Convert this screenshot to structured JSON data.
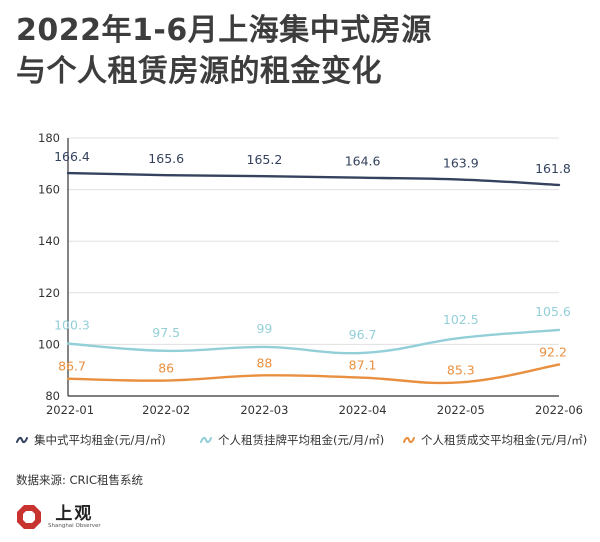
{
  "title": {
    "line1": "2022年1-6月上海集中式房源",
    "line2": "与个人租赁房源的租金变化"
  },
  "chart_data": {
    "type": "line",
    "title": "2022年1-6月上海集中式房源与个人租赁房源的租金变化",
    "categories": [
      "2022-01",
      "2022-02",
      "2022-03",
      "2022-04",
      "2022-05",
      "2022-06"
    ],
    "ylim": [
      80,
      180
    ],
    "yticks": [
      80,
      100,
      120,
      140,
      160,
      180
    ],
    "grid": "horizontal",
    "legend_position": "bottom",
    "series": [
      {
        "name": "集中式平均租金(元/月/㎡)",
        "color": "#34425e",
        "values": [
          166.4,
          165.6,
          165.2,
          164.6,
          163.9,
          161.8
        ],
        "labels": [
          "166.4",
          "165.6",
          "165.2",
          "164.6",
          "163.9",
          "161.8"
        ]
      },
      {
        "name": "个人租赁挂牌平均租金(元/月/㎡)",
        "color": "#93cfd8",
        "values": [
          100.3,
          97.5,
          99,
          96.7,
          102.5,
          105.6
        ],
        "labels": [
          "100.3",
          "97.5",
          "99",
          "96.7",
          "102.5",
          "105.6"
        ]
      },
      {
        "name": "个人租赁成交平均租金(元/月/㎡)",
        "color": "#e99040",
        "values": [
          86.7,
          86,
          88,
          87.1,
          85.3,
          92.2
        ],
        "labels": [
          "86.7",
          "86",
          "88",
          "87.1",
          "85.3",
          "92.2"
        ]
      }
    ]
  },
  "source": "数据来源: CRIC租售系统",
  "logo": {
    "name": "上观",
    "subtitle": "Shanghai Observer"
  },
  "colors": {
    "brand_red": "#c8322f",
    "axis": "#333333",
    "grid": "#e0e0e0"
  }
}
